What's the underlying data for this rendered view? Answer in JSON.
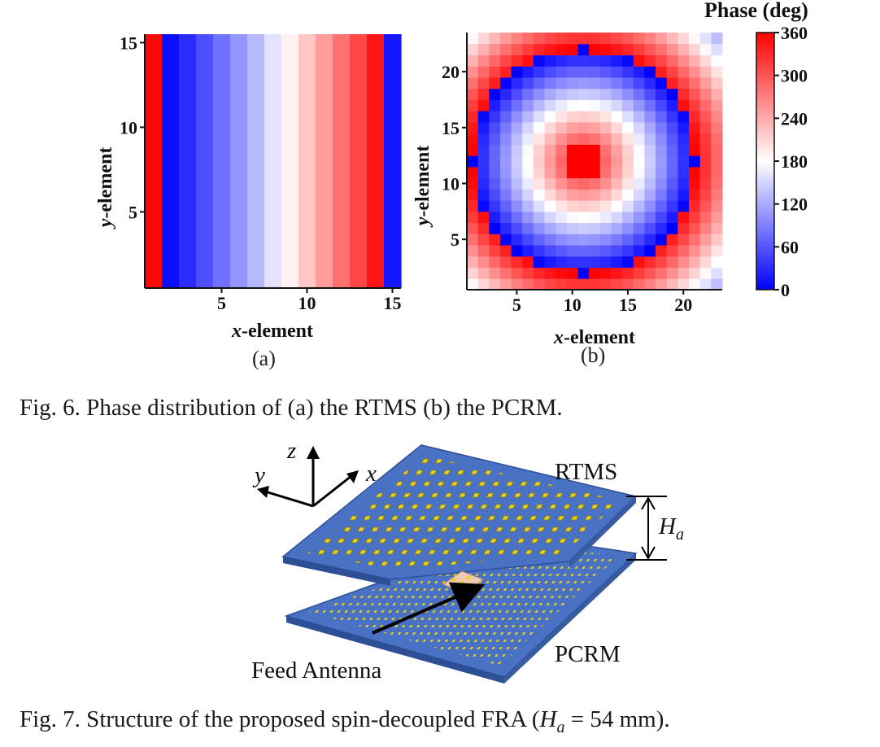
{
  "figure6": {
    "panel_a_label": "(a)",
    "panel_b_label": "(b)",
    "caption": "Fig. 6. Phase distribution of (a) the RTMS (b) the PCRM.",
    "colorbar": {
      "title": "Phase (deg)",
      "ticks": [
        "360",
        "300",
        "240",
        "180",
        "120",
        "60",
        "0"
      ],
      "colors": {
        "low": "#0000ff",
        "mid": "#ffffff",
        "high": "#ff0000"
      }
    }
  },
  "figure7": {
    "caption_prefix": "Fig. 7. Structure of the proposed spin-decoupled FRA (",
    "caption_var": "H",
    "caption_sub": "a",
    "caption_suffix": " = 54 mm).",
    "labels": {
      "rtms": "RTMS",
      "pcrm": "PCRM",
      "feed": "Feed Antenna",
      "ha_var": "H",
      "ha_sub": "a",
      "axis_x": "x",
      "axis_y": "y",
      "axis_z": "z"
    },
    "colors": {
      "board": "#4a72c4",
      "board_edge": "#2d4f96",
      "element": "#e8d21c",
      "feed": "#f0c9b0"
    }
  },
  "chart_data": [
    {
      "type": "heatmap",
      "title": "",
      "xlabel": "x-element",
      "ylabel": "y-element",
      "xlim": [
        0.5,
        15.5
      ],
      "ylim": [
        0.5,
        15.5
      ],
      "xticks": [
        "5",
        "10",
        "15"
      ],
      "yticks": [
        "5",
        "10",
        "15"
      ],
      "columns": 15,
      "rows": 15,
      "colorbar_range": [
        0,
        360
      ],
      "column_phase_deg": [
        355,
        10,
        30,
        55,
        80,
        105,
        130,
        160,
        190,
        220,
        250,
        280,
        310,
        345,
        15
      ]
    },
    {
      "type": "heatmap",
      "title": "",
      "xlabel": "x-element",
      "ylabel": "y-element",
      "xlim": [
        0.5,
        23.5
      ],
      "ylim": [
        0.5,
        23.5
      ],
      "xticks": [
        "5",
        "10",
        "15",
        "20"
      ],
      "yticks": [
        "5",
        "10",
        "15",
        "20"
      ],
      "columns": 23,
      "rows": 23,
      "colorbar_range": [
        0,
        360
      ],
      "center": [
        11,
        12
      ],
      "center_phase_deg": 360,
      "phase_gradient_deg_per_element": 36
    }
  ]
}
